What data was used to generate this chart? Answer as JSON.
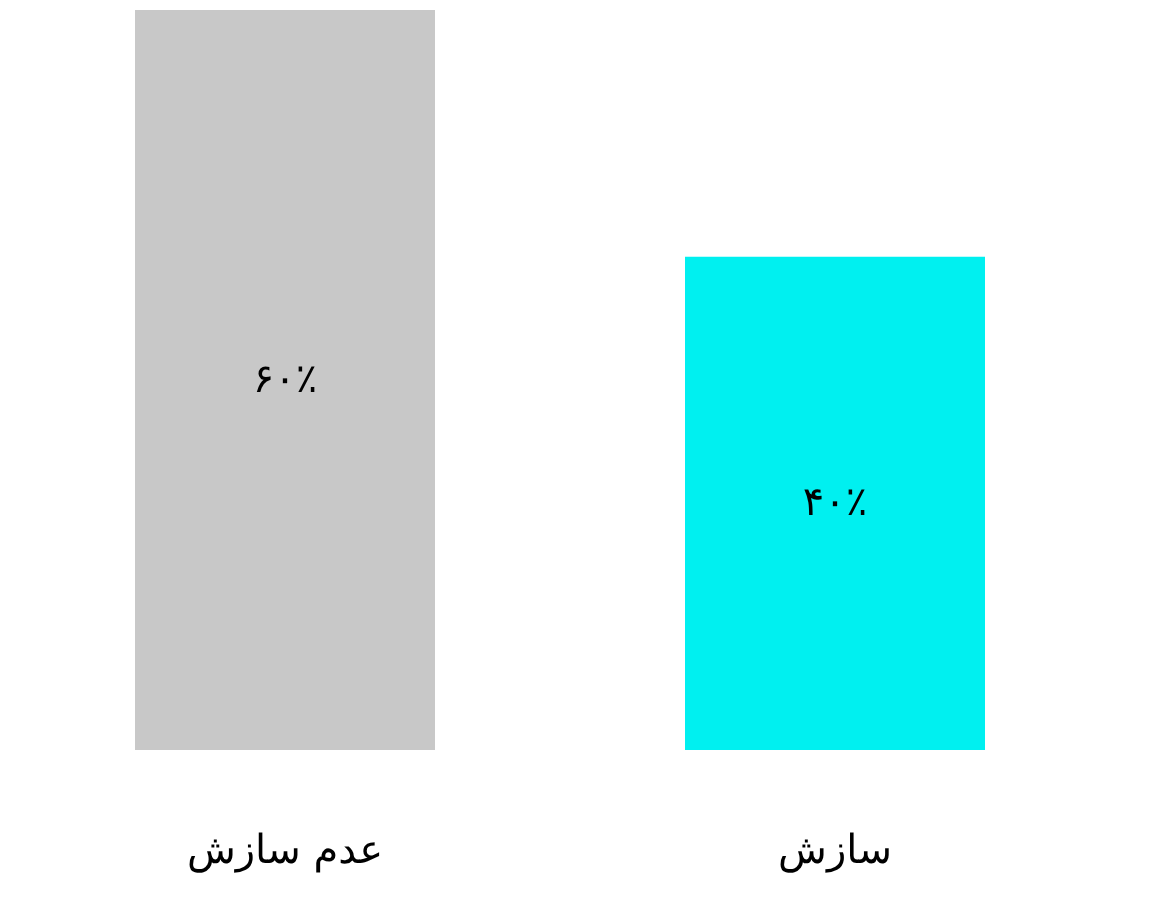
{
  "chart_data": {
    "type": "bar",
    "categories": [
      "عدم سازش",
      "سازش"
    ],
    "values": [
      60,
      40
    ],
    "colors": [
      "#c8c8c8",
      "#00f0f0"
    ],
    "value_labels": [
      "۶۰٪",
      "۴۰٪"
    ],
    "grid": false
  }
}
